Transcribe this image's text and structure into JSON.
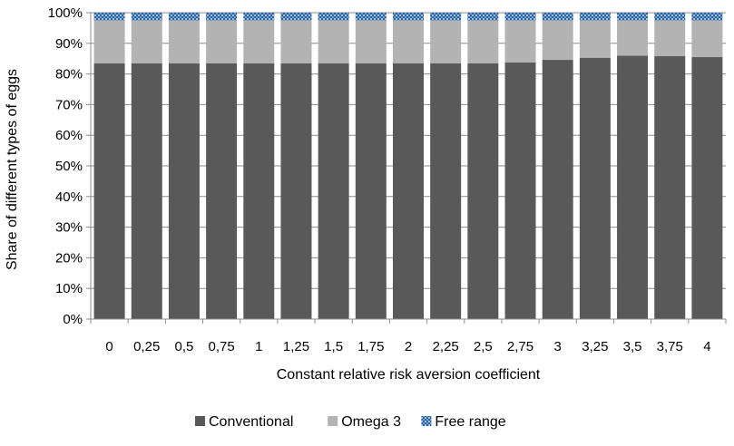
{
  "chart_data": {
    "type": "bar",
    "stacked": true,
    "percent_stacked": true,
    "xlabel": "Constant relative risk aversion coefficient",
    "ylabel": "Share of different types of eggs",
    "ylim": [
      0,
      100
    ],
    "yticks": [
      "0%",
      "10%",
      "20%",
      "30%",
      "40%",
      "50%",
      "60%",
      "70%",
      "80%",
      "90%",
      "100%"
    ],
    "categories": [
      "0",
      "0,25",
      "0,5",
      "0,75",
      "1",
      "1,25",
      "1,5",
      "1,75",
      "2",
      "2,25",
      "2,5",
      "2,75",
      "3",
      "3,25",
      "3,5",
      "3,75",
      "4"
    ],
    "series": [
      {
        "name": "Conventional",
        "color": "#595959",
        "values": [
          83.5,
          83.5,
          83.5,
          83.5,
          83.5,
          83.5,
          83.5,
          83.5,
          83.5,
          83.5,
          83.5,
          83.8,
          84.6,
          85.3,
          86.0,
          85.8,
          85.5
        ]
      },
      {
        "name": "Omega 3",
        "color": "#b3b3b3",
        "values": [
          14.0,
          14.0,
          14.0,
          14.0,
          14.0,
          14.0,
          14.0,
          14.0,
          14.0,
          14.0,
          14.0,
          13.7,
          12.9,
          12.2,
          11.5,
          11.7,
          12.0
        ]
      },
      {
        "name": "Free range",
        "color": "#4a7fb5",
        "pattern": "dotted-blue",
        "values": [
          2.5,
          2.5,
          2.5,
          2.5,
          2.5,
          2.5,
          2.5,
          2.5,
          2.5,
          2.5,
          2.5,
          2.5,
          2.5,
          2.5,
          2.5,
          2.5,
          2.5
        ]
      }
    ],
    "grid": "horizontal",
    "legend_position": "bottom"
  }
}
